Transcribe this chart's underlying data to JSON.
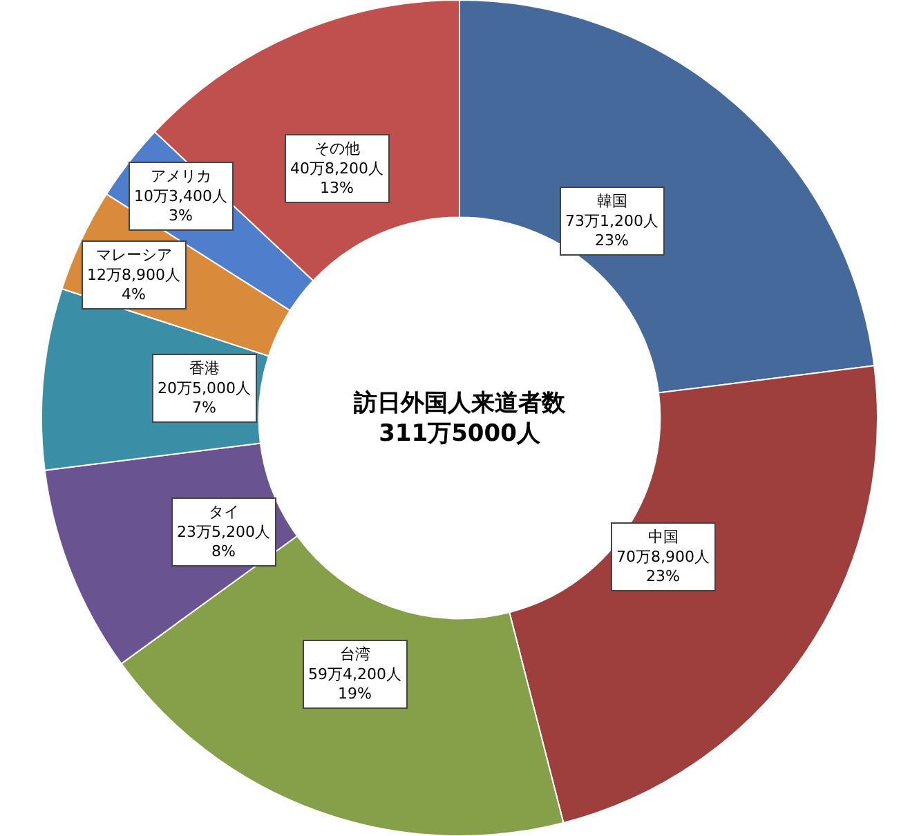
{
  "chart_data": {
    "type": "donut",
    "title": "訪日外国人来道者数",
    "subtitle": "311万5000人",
    "categories": [
      "韓国",
      "中国",
      "台湾",
      "タイ",
      "香港",
      "マレーシア",
      "アメリカ",
      "その他"
    ],
    "values": [
      23,
      23,
      19,
      8,
      7,
      4,
      3,
      13
    ],
    "value_labels": [
      "73万1,200人\n23%",
      "70万8,900人\n23%",
      "59万4,200人\n19%",
      "23万5,200人\n8%",
      "20万5,000人\n7%",
      "12万8,900人\n4%",
      "10万3,400人\n3%",
      "40万8,200人\n13%"
    ],
    "colors": [
      "#46699c",
      "#9e3f3d",
      "#86a04a",
      "#6a5391",
      "#3a8ea5",
      "#d98a3a",
      "#4f7fcc",
      "#c0504d"
    ],
    "legend": false
  }
}
